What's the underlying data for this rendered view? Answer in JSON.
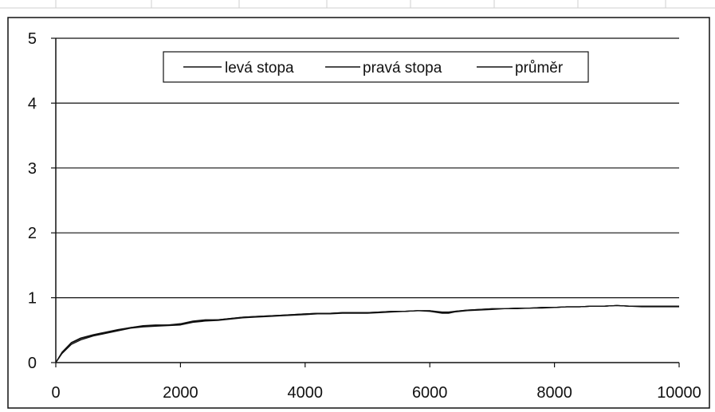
{
  "chart_data": {
    "type": "line",
    "title": "",
    "xlabel": "",
    "ylabel": "",
    "xlim": [
      0,
      10000
    ],
    "ylim": [
      0,
      5
    ],
    "x_ticks": [
      "0",
      "2000",
      "4000",
      "6000",
      "8000",
      "10000"
    ],
    "y_ticks": [
      "0",
      "1",
      "2",
      "3",
      "4",
      "5"
    ],
    "grid": "horizontal",
    "legend_position": "top-center",
    "x": [
      0,
      100,
      250,
      400,
      600,
      800,
      1000,
      1200,
      1400,
      1600,
      1800,
      2000,
      2200,
      2400,
      2600,
      2800,
      3000,
      3200,
      3400,
      3600,
      3800,
      4000,
      4200,
      4400,
      4600,
      4800,
      5000,
      5200,
      5400,
      5600,
      5800,
      6000,
      6200,
      6300,
      6400,
      6600,
      6800,
      7000,
      7200,
      7400,
      7600,
      7800,
      8000,
      8200,
      8400,
      8600,
      8800,
      9000,
      9200,
      9400,
      9600,
      9800,
      10000
    ],
    "series": [
      {
        "name": "levá stopa",
        "color": "#111111",
        "values": [
          0,
          0.16,
          0.31,
          0.38,
          0.43,
          0.47,
          0.51,
          0.54,
          0.57,
          0.58,
          0.58,
          0.6,
          0.64,
          0.66,
          0.66,
          0.68,
          0.7,
          0.71,
          0.72,
          0.73,
          0.74,
          0.75,
          0.76,
          0.76,
          0.77,
          0.77,
          0.77,
          0.78,
          0.79,
          0.79,
          0.8,
          0.8,
          0.78,
          0.78,
          0.79,
          0.81,
          0.82,
          0.83,
          0.83,
          0.84,
          0.84,
          0.85,
          0.85,
          0.86,
          0.86,
          0.87,
          0.87,
          0.88,
          0.87,
          0.87,
          0.87,
          0.87,
          0.87
        ]
      },
      {
        "name": "pravá stopa",
        "color": "#111111",
        "values": [
          0,
          0.14,
          0.28,
          0.35,
          0.41,
          0.45,
          0.49,
          0.53,
          0.55,
          0.56,
          0.57,
          0.58,
          0.62,
          0.64,
          0.65,
          0.67,
          0.69,
          0.7,
          0.71,
          0.72,
          0.73,
          0.74,
          0.75,
          0.75,
          0.76,
          0.76,
          0.76,
          0.77,
          0.78,
          0.79,
          0.8,
          0.79,
          0.76,
          0.76,
          0.78,
          0.8,
          0.81,
          0.82,
          0.83,
          0.83,
          0.84,
          0.84,
          0.85,
          0.86,
          0.86,
          0.87,
          0.87,
          0.88,
          0.87,
          0.86,
          0.86,
          0.86,
          0.86
        ]
      },
      {
        "name": "průměr",
        "color": "#111111",
        "values": [
          0,
          0.15,
          0.3,
          0.37,
          0.42,
          0.46,
          0.5,
          0.54,
          0.56,
          0.57,
          0.58,
          0.59,
          0.63,
          0.65,
          0.66,
          0.68,
          0.7,
          0.71,
          0.72,
          0.73,
          0.74,
          0.75,
          0.76,
          0.76,
          0.77,
          0.77,
          0.77,
          0.78,
          0.79,
          0.79,
          0.8,
          0.8,
          0.77,
          0.77,
          0.79,
          0.81,
          0.82,
          0.83,
          0.83,
          0.84,
          0.84,
          0.85,
          0.85,
          0.86,
          0.86,
          0.87,
          0.87,
          0.88,
          0.87,
          0.87,
          0.87,
          0.87,
          0.87
        ]
      }
    ]
  }
}
